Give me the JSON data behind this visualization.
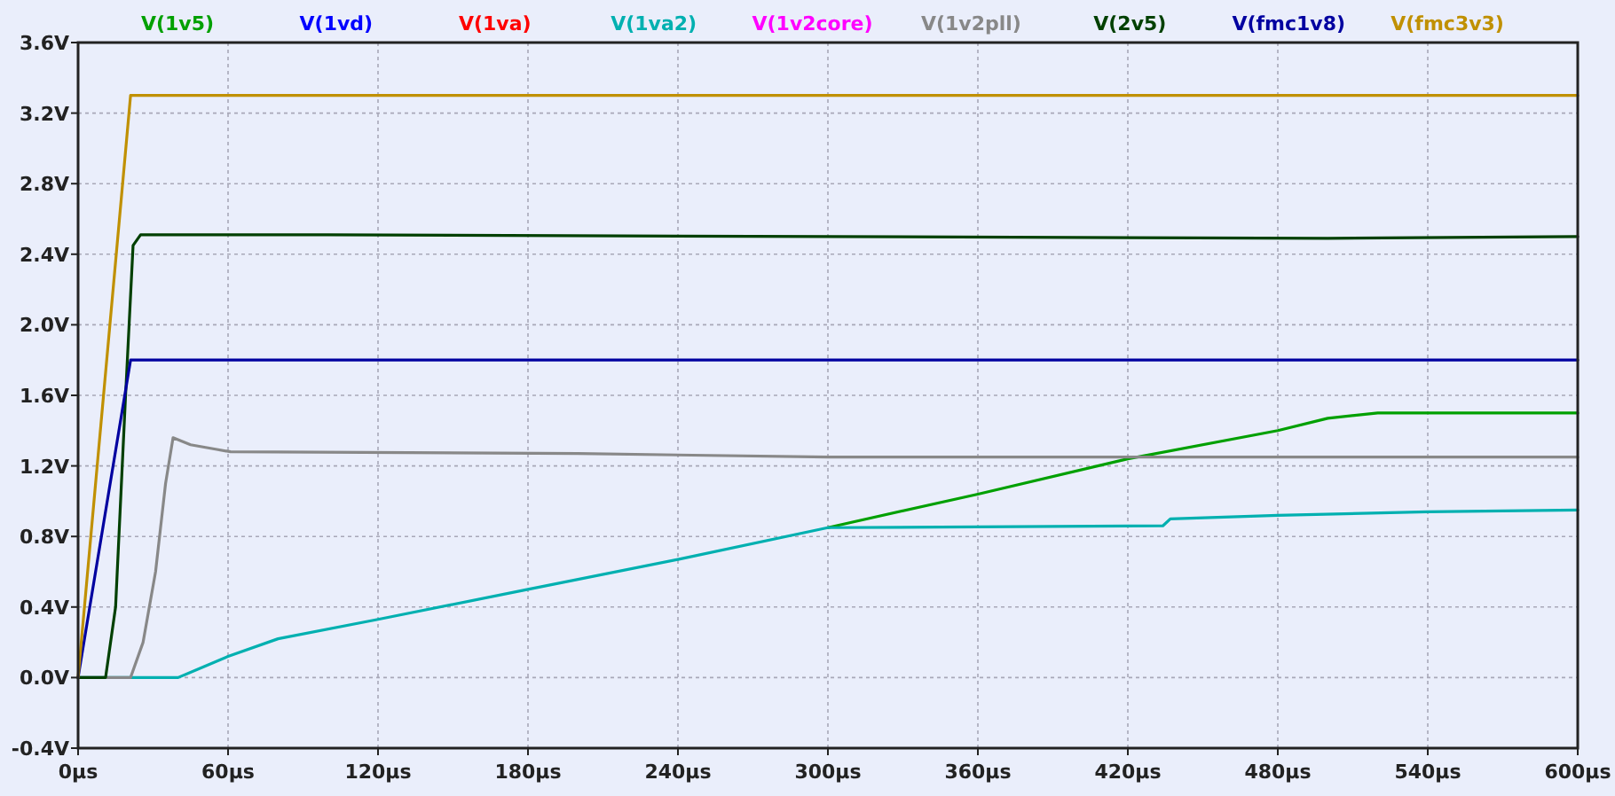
{
  "chart_data": {
    "type": "line",
    "xlim": [
      0,
      600
    ],
    "ylim": [
      -0.4,
      3.6
    ],
    "xticks": [
      {
        "value": 0,
        "label": "0µs"
      },
      {
        "value": 60,
        "label": "60µs"
      },
      {
        "value": 120,
        "label": "120µs"
      },
      {
        "value": 180,
        "label": "180µs"
      },
      {
        "value": 240,
        "label": "240µs"
      },
      {
        "value": 300,
        "label": "300µs"
      },
      {
        "value": 360,
        "label": "360µs"
      },
      {
        "value": 420,
        "label": "420µs"
      },
      {
        "value": 480,
        "label": "480µs"
      },
      {
        "value": 540,
        "label": "540µs"
      },
      {
        "value": 600,
        "label": "600µs"
      }
    ],
    "yticks": [
      {
        "value": -0.4,
        "label": "-0.4V"
      },
      {
        "value": 0,
        "label": "0.0V"
      },
      {
        "value": 0.4,
        "label": "0.4V"
      },
      {
        "value": 0.8,
        "label": "0.8V"
      },
      {
        "value": 1.2,
        "label": "1.2V"
      },
      {
        "value": 1.6,
        "label": "1.6V"
      },
      {
        "value": 2.0,
        "label": "2.0V"
      },
      {
        "value": 2.4,
        "label": "2.4V"
      },
      {
        "value": 2.8,
        "label": "2.8V"
      },
      {
        "value": 3.2,
        "label": "3.2V"
      },
      {
        "value": 3.6,
        "label": "3.6V"
      }
    ],
    "grid": true,
    "legend": "top",
    "marker": "none",
    "line_style": "solid",
    "series": [
      {
        "name": "V(1v5)",
        "color": "#00a000",
        "x": [
          300,
          360,
          420,
          480,
          500,
          520,
          600
        ],
        "values": [
          0.85,
          1.04,
          1.24,
          1.4,
          1.47,
          1.5,
          1.5
        ]
      },
      {
        "name": "V(1vd)",
        "color": "#0000ff"
      },
      {
        "name": "V(1va)",
        "color": "#ff0000"
      },
      {
        "name": "V(1va2)",
        "color": "#00b0b0",
        "x": [
          0,
          40,
          50,
          60,
          80,
          120,
          180,
          240,
          300,
          434,
          437,
          480,
          540,
          600
        ],
        "values": [
          0,
          0,
          0.06,
          0.12,
          0.22,
          0.33,
          0.5,
          0.67,
          0.85,
          0.86,
          0.9,
          0.92,
          0.94,
          0.95
        ]
      },
      {
        "name": "V(1v2core)",
        "color": "#ff00ff"
      },
      {
        "name": "V(1v2pll)",
        "color": "#888888",
        "x": [
          0,
          21,
          26,
          31,
          35,
          38,
          45,
          61,
          200,
          300,
          600
        ],
        "values": [
          0,
          0,
          0.2,
          0.6,
          1.1,
          1.36,
          1.32,
          1.28,
          1.27,
          1.25,
          1.25
        ]
      },
      {
        "name": "V(2v5)",
        "color": "#004000",
        "x": [
          0,
          11,
          15,
          19,
          22,
          25,
          100,
          300,
          500,
          600
        ],
        "values": [
          0,
          0,
          0.4,
          1.6,
          2.45,
          2.51,
          2.51,
          2.5,
          2.49,
          2.5
        ]
      },
      {
        "name": "V(fmc1v8)",
        "color": "#0000a0",
        "x": [
          0,
          21,
          600
        ],
        "values": [
          0,
          1.8,
          1.8
        ]
      },
      {
        "name": "V(fmc3v3)",
        "color": "#c09000",
        "x": [
          0,
          21,
          600
        ],
        "values": [
          0,
          3.3,
          3.3
        ]
      }
    ]
  }
}
